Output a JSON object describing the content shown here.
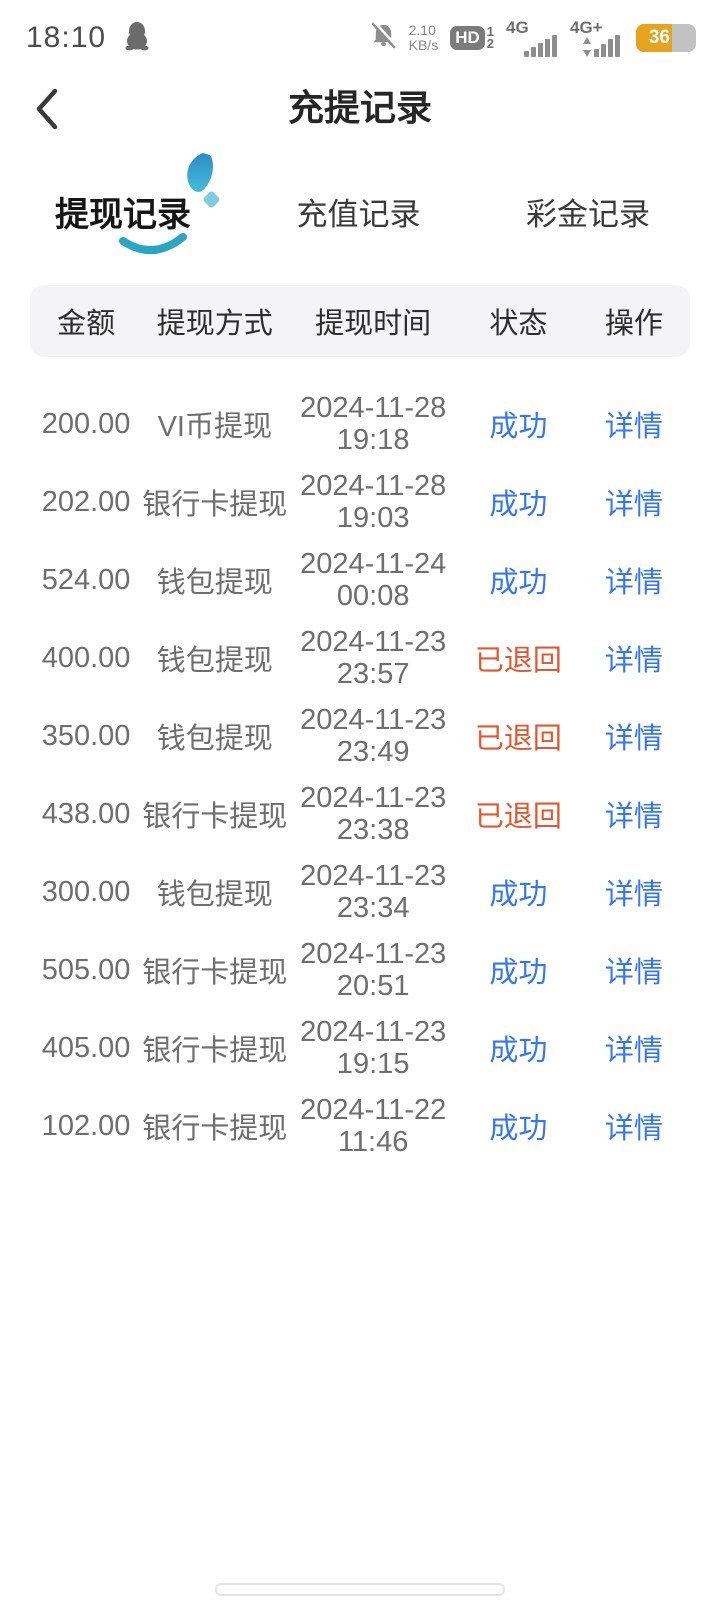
{
  "status_bar": {
    "time": "18:10",
    "network_speed_value": "2.10",
    "network_speed_unit": "KB/s",
    "hd_badge": "HD",
    "sim1": "1",
    "sim2": "2",
    "net1": "4G",
    "net2": "4G+",
    "battery_percent": "36"
  },
  "header": {
    "title": "充提记录"
  },
  "tabs": [
    {
      "label": "提现记录",
      "active": true
    },
    {
      "label": "充值记录",
      "active": false
    },
    {
      "label": "彩金记录",
      "active": false
    }
  ],
  "table": {
    "columns": [
      "金额",
      "提现方式",
      "提现时间",
      "状态",
      "操作"
    ],
    "action_label": "详情",
    "rows": [
      {
        "amount": "200.00",
        "method": "VI币提现",
        "date": "2024-11-28",
        "time": "19:18",
        "status": "成功",
        "status_type": "success"
      },
      {
        "amount": "202.00",
        "method": "银行卡提现",
        "date": "2024-11-28",
        "time": "19:03",
        "status": "成功",
        "status_type": "success"
      },
      {
        "amount": "524.00",
        "method": "钱包提现",
        "date": "2024-11-24",
        "time": "00:08",
        "status": "成功",
        "status_type": "success"
      },
      {
        "amount": "400.00",
        "method": "钱包提现",
        "date": "2024-11-23",
        "time": "23:57",
        "status": "已退回",
        "status_type": "returned"
      },
      {
        "amount": "350.00",
        "method": "钱包提现",
        "date": "2024-11-23",
        "time": "23:49",
        "status": "已退回",
        "status_type": "returned"
      },
      {
        "amount": "438.00",
        "method": "银行卡提现",
        "date": "2024-11-23",
        "time": "23:38",
        "status": "已退回",
        "status_type": "returned"
      },
      {
        "amount": "300.00",
        "method": "钱包提现",
        "date": "2024-11-23",
        "time": "23:34",
        "status": "成功",
        "status_type": "success"
      },
      {
        "amount": "505.00",
        "method": "银行卡提现",
        "date": "2024-11-23",
        "time": "20:51",
        "status": "成功",
        "status_type": "success"
      },
      {
        "amount": "405.00",
        "method": "银行卡提现",
        "date": "2024-11-23",
        "time": "19:15",
        "status": "成功",
        "status_type": "success"
      },
      {
        "amount": "102.00",
        "method": "银行卡提现",
        "date": "2024-11-22",
        "time": "11:46",
        "status": "成功",
        "status_type": "success"
      }
    ]
  },
  "colors": {
    "success_blue": "#3577f1",
    "returned_orange": "#e25730",
    "accent_teal": "#29a6c3",
    "battery_amber": "#e8a31c",
    "header_bg": "#f4f4f6"
  }
}
